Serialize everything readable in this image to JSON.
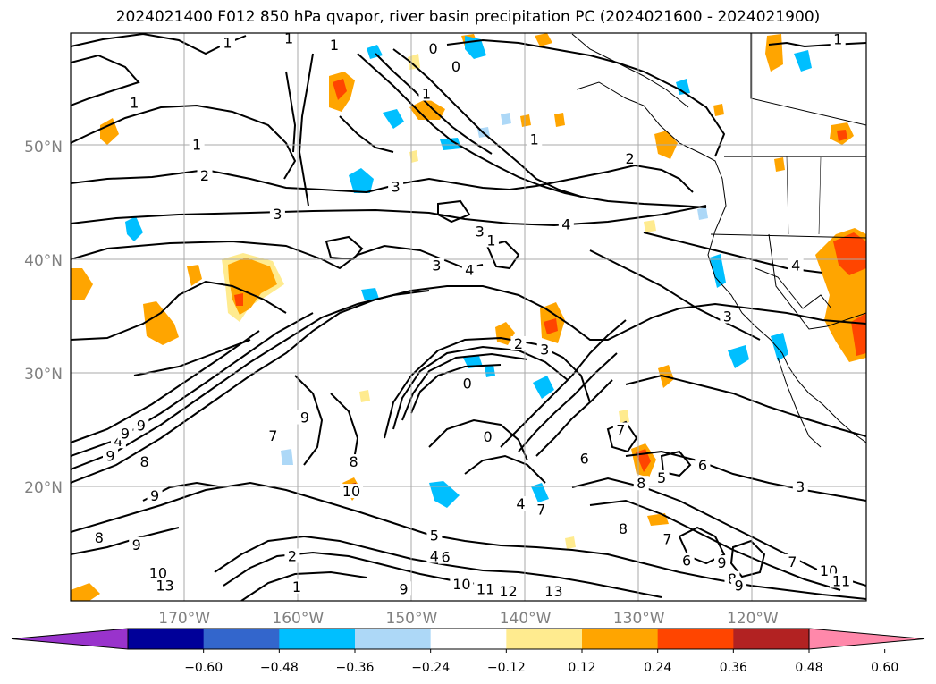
{
  "title": "2024021400 F012 850 hPa qvapor, river basin precipitation PC (2024021600 - 2024021900)",
  "lat_ticks": [
    {
      "label": "50°N",
      "lat": 50
    },
    {
      "label": "40°N",
      "lat": 40
    },
    {
      "label": "30°N",
      "lat": 30
    },
    {
      "label": "20°N",
      "lat": 20
    }
  ],
  "lon_ticks": [
    {
      "label": "170°W",
      "lon": -170
    },
    {
      "label": "160°W",
      "lon": -160
    },
    {
      "label": "150°W",
      "lon": -150
    },
    {
      "label": "140°W",
      "lon": -140
    },
    {
      "label": "130°W",
      "lon": -130
    },
    {
      "label": "120°W",
      "lon": -120
    }
  ],
  "colorbar": {
    "colors": [
      "#9933cc",
      "#000099",
      "#3366cc",
      "#00bfff",
      "#add8f7",
      "#ffffff",
      "#ffeb8f",
      "#ffa500",
      "#ff4500",
      "#b22222",
      "#ff88aa"
    ],
    "labels": [
      "−0.60",
      "−0.48",
      "−0.36",
      "−0.24",
      "−0.12",
      "0.12",
      "0.24",
      "0.36",
      "0.48",
      "0.60"
    ]
  },
  "contour_labels": [
    {
      "t": "1",
      "lon": -166.2,
      "lat": 59.1
    },
    {
      "t": "1",
      "lon": -160.8,
      "lat": 59.5
    },
    {
      "t": "0",
      "lon": -148.1,
      "lat": 58.6
    },
    {
      "t": "0",
      "lon": -146.1,
      "lat": 57.0
    },
    {
      "t": "1",
      "lon": -148.7,
      "lat": 54.6
    },
    {
      "t": "1",
      "lon": -139.2,
      "lat": 50.6
    },
    {
      "t": "1",
      "lon": -143.0,
      "lat": 41.7
    },
    {
      "t": "2",
      "lon": -168.2,
      "lat": 47.4
    },
    {
      "t": "2",
      "lon": -130.8,
      "lat": 48.9
    },
    {
      "t": "3",
      "lon": -161.8,
      "lat": 44.0
    },
    {
      "t": "3",
      "lon": -151.4,
      "lat": 46.4
    },
    {
      "t": "3",
      "lon": -144.0,
      "lat": 42.5
    },
    {
      "t": "3",
      "lon": -122.2,
      "lat": 35.0
    },
    {
      "t": "3",
      "lon": -147.8,
      "lat": 39.5
    },
    {
      "t": "4",
      "lon": -136.4,
      "lat": 43.1
    },
    {
      "t": "4",
      "lon": -144.9,
      "lat": 39.1
    },
    {
      "t": "4",
      "lon": -175.8,
      "lat": 24.0
    },
    {
      "t": "4",
      "lon": -116.2,
      "lat": 39.5
    },
    {
      "t": "2",
      "lon": -140.6,
      "lat": 32.6
    },
    {
      "t": "3",
      "lon": -138.3,
      "lat": 32.1
    },
    {
      "t": "0",
      "lon": -145.1,
      "lat": 29.1
    },
    {
      "t": "0",
      "lon": -143.3,
      "lat": 24.4
    },
    {
      "t": "9",
      "lon": -175.2,
      "lat": 24.7
    },
    {
      "t": "9",
      "lon": -176.5,
      "lat": 22.7
    },
    {
      "t": "8",
      "lon": -173.5,
      "lat": 22.2
    },
    {
      "t": "9",
      "lon": -172.6,
      "lat": 19.2
    },
    {
      "t": "8",
      "lon": -177.5,
      "lat": 15.5
    },
    {
      "t": "9",
      "lon": -174.2,
      "lat": 14.9
    },
    {
      "t": "9",
      "lon": -159.4,
      "lat": 26.1
    },
    {
      "t": "10",
      "lon": -155.3,
      "lat": 19.6
    },
    {
      "t": "8",
      "lon": -155.1,
      "lat": 22.2
    },
    {
      "t": "5",
      "lon": -148.0,
      "lat": 15.7
    },
    {
      "t": "4",
      "lon": -148.0,
      "lat": 13.9
    },
    {
      "t": "2",
      "lon": -160.5,
      "lat": 13.9
    },
    {
      "t": "1",
      "lon": -160.1,
      "lat": 11.2
    },
    {
      "t": "10",
      "lon": -172.3,
      "lat": 12.4
    },
    {
      "t": "13",
      "lon": -171.7,
      "lat": 11.3
    },
    {
      "t": "9",
      "lon": -150.7,
      "lat": 11.0
    },
    {
      "t": "10",
      "lon": -145.6,
      "lat": 11.4
    },
    {
      "t": "11",
      "lon": -143.5,
      "lat": 11.0
    },
    {
      "t": "12",
      "lon": -141.5,
      "lat": 10.8
    },
    {
      "t": "13",
      "lon": -137.5,
      "lat": 10.8
    },
    {
      "t": "7",
      "lon": -131.6,
      "lat": 25.0
    },
    {
      "t": "6",
      "lon": -134.8,
      "lat": 22.5
    },
    {
      "t": "8",
      "lon": -129.8,
      "lat": 20.3
    },
    {
      "t": "5",
      "lon": -128.0,
      "lat": 20.8
    },
    {
      "t": "6",
      "lon": -124.4,
      "lat": 21.9
    },
    {
      "t": "8",
      "lon": -131.4,
      "lat": 16.3
    },
    {
      "t": "7",
      "lon": -127.5,
      "lat": 15.4
    },
    {
      "t": "6",
      "lon": -125.8,
      "lat": 13.5
    },
    {
      "t": "9",
      "lon": -122.7,
      "lat": 13.3
    },
    {
      "t": "8",
      "lon": -121.8,
      "lat": 11.9
    },
    {
      "t": "9",
      "lon": -121.2,
      "lat": 11.3
    },
    {
      "t": "3",
      "lon": -115.8,
      "lat": 20.0
    },
    {
      "t": "10",
      "lon": -113.3,
      "lat": 12.6
    },
    {
      "t": "11",
      "lon": -112.2,
      "lat": 11.7
    },
    {
      "t": "7",
      "lon": -116.5,
      "lat": 13.4
    },
    {
      "t": "7",
      "lon": -138.6,
      "lat": 18.0
    },
    {
      "t": "6",
      "lon": -147.0,
      "lat": 13.8
    },
    {
      "t": "4",
      "lon": -140.4,
      "lat": 18.5
    },
    {
      "t": "9",
      "lon": -173.8,
      "lat": 25.4
    },
    {
      "t": "7",
      "lon": -162.2,
      "lat": 24.5
    },
    {
      "t": "1",
      "lon": -174.4,
      "lat": 53.8
    },
    {
      "t": "1",
      "lon": -168.9,
      "lat": 50.1
    },
    {
      "t": "1",
      "lon": -156.8,
      "lat": 58.9
    },
    {
      "t": "1",
      "lon": -112.5,
      "lat": 59.4
    }
  ]
}
